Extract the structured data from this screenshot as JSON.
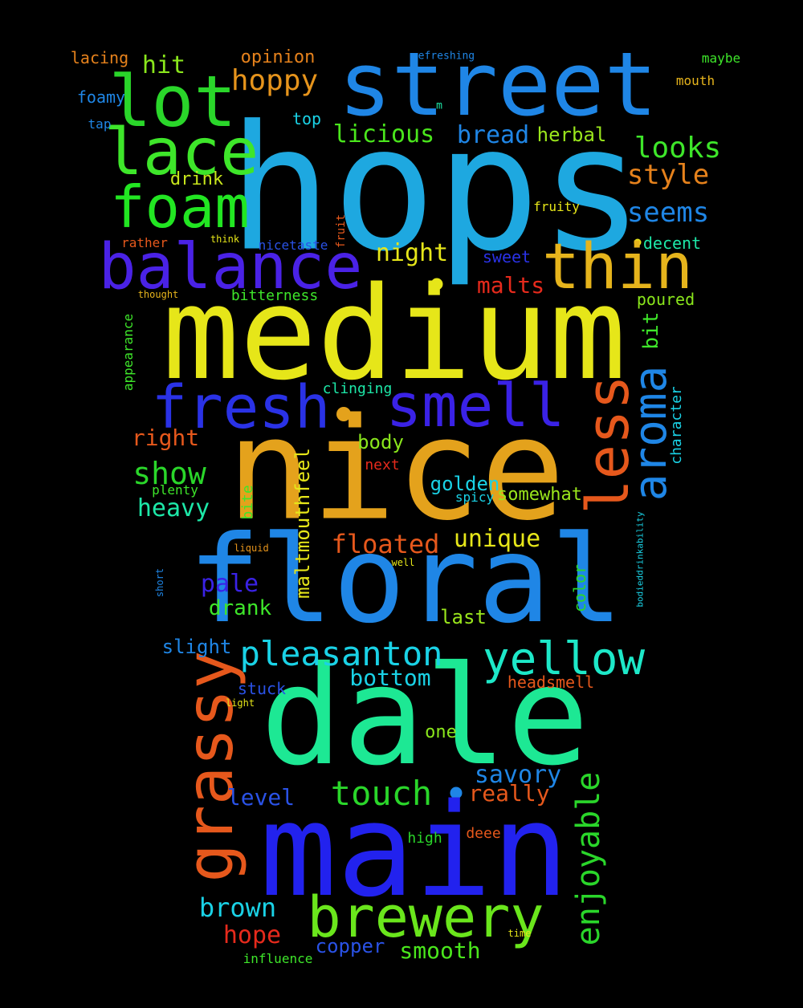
{
  "words": [
    {
      "text": "hops",
      "color": "#1ea8e0"
    },
    {
      "text": "medium",
      "color": "#e6e619"
    },
    {
      "text": "nice",
      "color": "#e4a21c"
    },
    {
      "text": "floral",
      "color": "#1f86e6"
    },
    {
      "text": "dale",
      "color": "#1de894"
    },
    {
      "text": "main",
      "color": "#2222ee"
    },
    {
      "text": "street",
      "color": "#1f86e6"
    },
    {
      "text": "lot",
      "color": "#2ad62a"
    },
    {
      "text": "lace",
      "color": "#3ee62a"
    },
    {
      "text": "foam",
      "color": "#22e622"
    },
    {
      "text": "balance",
      "color": "#4a22e6"
    },
    {
      "text": "thin",
      "color": "#e6b41c"
    },
    {
      "text": "fresh",
      "color": "#2a32e6"
    },
    {
      "text": "smell",
      "color": "#3a22e6"
    },
    {
      "text": "grassy",
      "color": "#e6581c"
    },
    {
      "text": "less",
      "color": "#e6581c"
    },
    {
      "text": "aroma",
      "color": "#1f86e6"
    },
    {
      "text": "yellow",
      "color": "#1de8c8"
    },
    {
      "text": "brewery",
      "color": "#6ae61c"
    },
    {
      "text": "pleasanton",
      "color": "#1ad2e6"
    },
    {
      "text": "enjoyable",
      "color": "#2ad62a"
    },
    {
      "text": "touch",
      "color": "#2ad62a"
    },
    {
      "text": "hoppy",
      "color": "#e6941c"
    },
    {
      "text": "style",
      "color": "#e6821c"
    },
    {
      "text": "seems",
      "color": "#1f86e6"
    },
    {
      "text": "looks",
      "color": "#3ee62a"
    },
    {
      "text": "show",
      "color": "#2ad62a"
    },
    {
      "text": "hit",
      "color": "#8ae61c"
    },
    {
      "text": "bread",
      "color": "#1f86e6"
    },
    {
      "text": "licious",
      "color": "#4ae61c"
    },
    {
      "text": "herbal",
      "color": "#9ae61c"
    },
    {
      "text": "night",
      "color": "#e6e619"
    },
    {
      "text": "malts",
      "color": "#e62a1c"
    },
    {
      "text": "floated",
      "color": "#e6581c"
    },
    {
      "text": "unique",
      "color": "#e6e619"
    },
    {
      "text": "savory",
      "color": "#1f86e6"
    },
    {
      "text": "really",
      "color": "#e6581c"
    },
    {
      "text": "level",
      "color": "#2a52e6"
    },
    {
      "text": "bottom",
      "color": "#1ad2e6"
    },
    {
      "text": "brown",
      "color": "#1ad2e6"
    },
    {
      "text": "hope",
      "color": "#e62a1c"
    },
    {
      "text": "smooth",
      "color": "#4ae61c"
    },
    {
      "text": "copper",
      "color": "#2a52e6"
    },
    {
      "text": "heavy",
      "color": "#1de8a8"
    },
    {
      "text": "pale",
      "color": "#3a22e6"
    },
    {
      "text": "drank",
      "color": "#3ee62a"
    },
    {
      "text": "right",
      "color": "#e6581c"
    },
    {
      "text": "body",
      "color": "#8ae61c"
    },
    {
      "text": "golden",
      "color": "#1ad2e6"
    },
    {
      "text": "maltmouthfeel",
      "color": "#e6e619"
    },
    {
      "text": "slight",
      "color": "#1f86e6"
    },
    {
      "text": "last",
      "color": "#9ae61c"
    },
    {
      "text": "opinion",
      "color": "#e6821c"
    },
    {
      "text": "drink",
      "color": "#c8e61c"
    },
    {
      "text": "bit",
      "color": "#3ee62a"
    },
    {
      "text": "poured",
      "color": "#8ae61c"
    },
    {
      "text": "decent",
      "color": "#1de8a8"
    },
    {
      "text": "sweet",
      "color": "#2a32e6"
    },
    {
      "text": "bitterness",
      "color": "#3ee62a"
    },
    {
      "text": "clinging",
      "color": "#1de8a8"
    },
    {
      "text": "next",
      "color": "#e62a1c"
    },
    {
      "text": "somewhat",
      "color": "#9ae61c"
    },
    {
      "text": "spicy",
      "color": "#1ad2e6"
    },
    {
      "text": "character",
      "color": "#1ad2e6"
    },
    {
      "text": "color",
      "color": "#2ad62a"
    },
    {
      "text": "stuck",
      "color": "#2a52e6"
    },
    {
      "text": "headsmell",
      "color": "#e6581c"
    },
    {
      "text": "one",
      "color": "#8ae61c"
    },
    {
      "text": "high",
      "color": "#2ad62a"
    },
    {
      "text": "deee",
      "color": "#e6581c"
    },
    {
      "text": "influence",
      "color": "#3ee62a"
    },
    {
      "text": "top",
      "color": "#1ad2e6"
    },
    {
      "text": "lacing",
      "color": "#e6821c"
    },
    {
      "text": "foamy",
      "color": "#1f86e6"
    },
    {
      "text": "tap",
      "color": "#1f86e6"
    },
    {
      "text": "mouth",
      "color": "#e6b41c"
    },
    {
      "text": "maybe",
      "color": "#3ee62a"
    },
    {
      "text": "refreshing",
      "color": "#1f86e6"
    },
    {
      "text": "m",
      "color": "#1de8a8"
    },
    {
      "text": "fruity",
      "color": "#e6e619"
    },
    {
      "text": "nicetaste",
      "color": "#2a52e6"
    },
    {
      "text": "rather",
      "color": "#e6581c"
    },
    {
      "text": "think",
      "color": "#e6e619"
    },
    {
      "text": "thought",
      "color": "#e6b41c"
    },
    {
      "text": "fruit",
      "color": "#e6581c"
    },
    {
      "text": "appearance",
      "color": "#3ee62a"
    },
    {
      "text": "plenty",
      "color": "#3ee62a"
    },
    {
      "text": "bite",
      "color": "#3ee62a"
    },
    {
      "text": "liquid",
      "color": "#e6941c"
    },
    {
      "text": "short",
      "color": "#1f86e6"
    },
    {
      "text": "well",
      "color": "#e6e619"
    },
    {
      "text": "bodieddrinkability",
      "color": "#1ad2e6"
    },
    {
      "text": "light",
      "color": "#e6e619"
    },
    {
      "text": "time",
      "color": "#e6e619"
    }
  ]
}
